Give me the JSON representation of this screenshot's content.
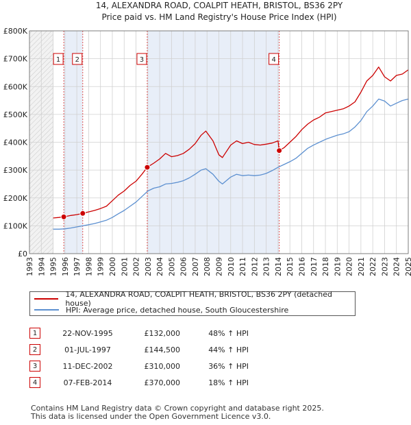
{
  "chart_data": {
    "type": "line",
    "title": "14, ALEXANDRA ROAD, COALPIT HEATH, BRISTOL, BS36 2PY",
    "subtitle": "Price paid vs. HM Land Registry's House Price Index (HPI)",
    "xlim": [
      1993,
      2025
    ],
    "ylim": [
      0,
      800000
    ],
    "x_ticks": [
      1993,
      1994,
      1995,
      1996,
      1997,
      1998,
      1999,
      2000,
      2001,
      2002,
      2003,
      2004,
      2005,
      2006,
      2007,
      2008,
      2009,
      2010,
      2011,
      2012,
      2013,
      2014,
      2015,
      2016,
      2017,
      2018,
      2019,
      2020,
      2021,
      2022,
      2023,
      2024,
      2025
    ],
    "y_ticks": [
      {
        "value": 0,
        "label": "£0"
      },
      {
        "value": 100000,
        "label": "£100K"
      },
      {
        "value": 200000,
        "label": "£200K"
      },
      {
        "value": 300000,
        "label": "£300K"
      },
      {
        "value": 400000,
        "label": "£400K"
      },
      {
        "value": 500000,
        "label": "£500K"
      },
      {
        "value": 600000,
        "label": "£600K"
      },
      {
        "value": 700000,
        "label": "£700K"
      },
      {
        "value": 800000,
        "label": "£800K"
      }
    ],
    "no_data_before": 1995.0,
    "shaded_periods": [
      [
        1995.9,
        1997.5
      ],
      [
        2002.95,
        2014.1
      ]
    ],
    "series": [
      {
        "name": "14, ALEXANDRA ROAD, COALPIT HEATH, BRISTOL, BS36 2PY (detached house)",
        "color": "#cc0000",
        "x": [
          1995.0,
          1995.5,
          1995.9,
          1996.5,
          1997.0,
          1997.5,
          1998.0,
          1998.5,
          1999.0,
          1999.5,
          2000.0,
          2000.5,
          2001.0,
          2001.5,
          2002.0,
          2002.5,
          2002.95,
          2003.5,
          2004.0,
          2004.5,
          2005.0,
          2005.5,
          2006.0,
          2006.5,
          2007.0,
          2007.5,
          2007.9,
          2008.5,
          2009.0,
          2009.3,
          2010.0,
          2010.5,
          2011.0,
          2011.5,
          2012.0,
          2012.5,
          2013.0,
          2013.5,
          2014.0,
          2014.1,
          2014.5,
          2015.0,
          2015.5,
          2016.0,
          2016.5,
          2017.0,
          2017.5,
          2018.0,
          2018.5,
          2019.0,
          2019.5,
          2020.0,
          2020.5,
          2021.0,
          2021.5,
          2022.0,
          2022.5,
          2023.0,
          2023.5,
          2024.0,
          2024.5,
          2025.0
        ],
        "values": [
          128000,
          130000,
          132000,
          137000,
          140000,
          144500,
          150000,
          155000,
          162000,
          170000,
          190000,
          210000,
          225000,
          245000,
          260000,
          285000,
          310000,
          325000,
          340000,
          360000,
          348000,
          352000,
          360000,
          375000,
          395000,
          425000,
          440000,
          405000,
          355000,
          345000,
          390000,
          405000,
          395000,
          400000,
          392000,
          390000,
          393000,
          397000,
          405000,
          370000,
          380000,
          400000,
          420000,
          445000,
          465000,
          480000,
          490000,
          505000,
          510000,
          515000,
          520000,
          530000,
          545000,
          580000,
          620000,
          640000,
          670000,
          635000,
          620000,
          640000,
          645000,
          660000
        ]
      },
      {
        "name": "HPI: Average price, detached house, South Gloucestershire",
        "color": "#5b8fd0",
        "x": [
          1995.0,
          1995.5,
          1996.0,
          1996.5,
          1997.0,
          1997.5,
          1998.0,
          1998.5,
          1999.0,
          1999.5,
          2000.0,
          2000.5,
          2001.0,
          2001.5,
          2002.0,
          2002.5,
          2003.0,
          2003.5,
          2004.0,
          2004.5,
          2005.0,
          2005.5,
          2006.0,
          2006.5,
          2007.0,
          2007.5,
          2007.9,
          2008.5,
          2009.0,
          2009.3,
          2010.0,
          2010.5,
          2011.0,
          2011.5,
          2012.0,
          2012.5,
          2013.0,
          2013.5,
          2014.0,
          2014.5,
          2015.0,
          2015.5,
          2016.0,
          2016.5,
          2017.0,
          2017.5,
          2018.0,
          2018.5,
          2019.0,
          2019.5,
          2020.0,
          2020.5,
          2021.0,
          2021.5,
          2022.0,
          2022.5,
          2023.0,
          2023.5,
          2024.0,
          2024.5,
          2025.0
        ],
        "values": [
          88000,
          88000,
          89000,
          92000,
          96000,
          100000,
          104000,
          108000,
          114000,
          120000,
          130000,
          143000,
          155000,
          170000,
          185000,
          205000,
          225000,
          235000,
          240000,
          250000,
          252000,
          256000,
          262000,
          272000,
          285000,
          300000,
          305000,
          285000,
          260000,
          250000,
          275000,
          285000,
          280000,
          282000,
          280000,
          282000,
          288000,
          298000,
          310000,
          320000,
          330000,
          342000,
          360000,
          378000,
          390000,
          400000,
          410000,
          418000,
          425000,
          430000,
          438000,
          455000,
          478000,
          510000,
          530000,
          555000,
          548000,
          530000,
          540000,
          550000,
          555000
        ]
      }
    ],
    "markers": [
      {
        "label": "1",
        "x": 1995.9,
        "y": 132000
      },
      {
        "label": "2",
        "x": 1997.5,
        "y": 144500
      },
      {
        "label": "3",
        "x": 2002.95,
        "y": 310000
      },
      {
        "label": "4",
        "x": 2014.1,
        "y": 370000
      }
    ]
  },
  "legend": {
    "property_label": "14, ALEXANDRA ROAD, COALPIT HEATH, BRISTOL, BS36 2PY (detached house)",
    "hpi_label": "HPI: Average price, detached house, South Gloucestershire"
  },
  "transactions": [
    {
      "num": "1",
      "date": "22-NOV-1995",
      "price": "£132,000",
      "hpi": "48% ↑ HPI"
    },
    {
      "num": "2",
      "date": "01-JUL-1997",
      "price": "£144,500",
      "hpi": "44% ↑ HPI"
    },
    {
      "num": "3",
      "date": "11-DEC-2002",
      "price": "£310,000",
      "hpi": "36% ↑ HPI"
    },
    {
      "num": "4",
      "date": "07-FEB-2014",
      "price": "£370,000",
      "hpi": "18% ↑ HPI"
    }
  ],
  "footer": {
    "line1": "Contains HM Land Registry data © Crown copyright and database right 2025.",
    "line2": "This data is licensed under the Open Government Licence v3.0."
  }
}
